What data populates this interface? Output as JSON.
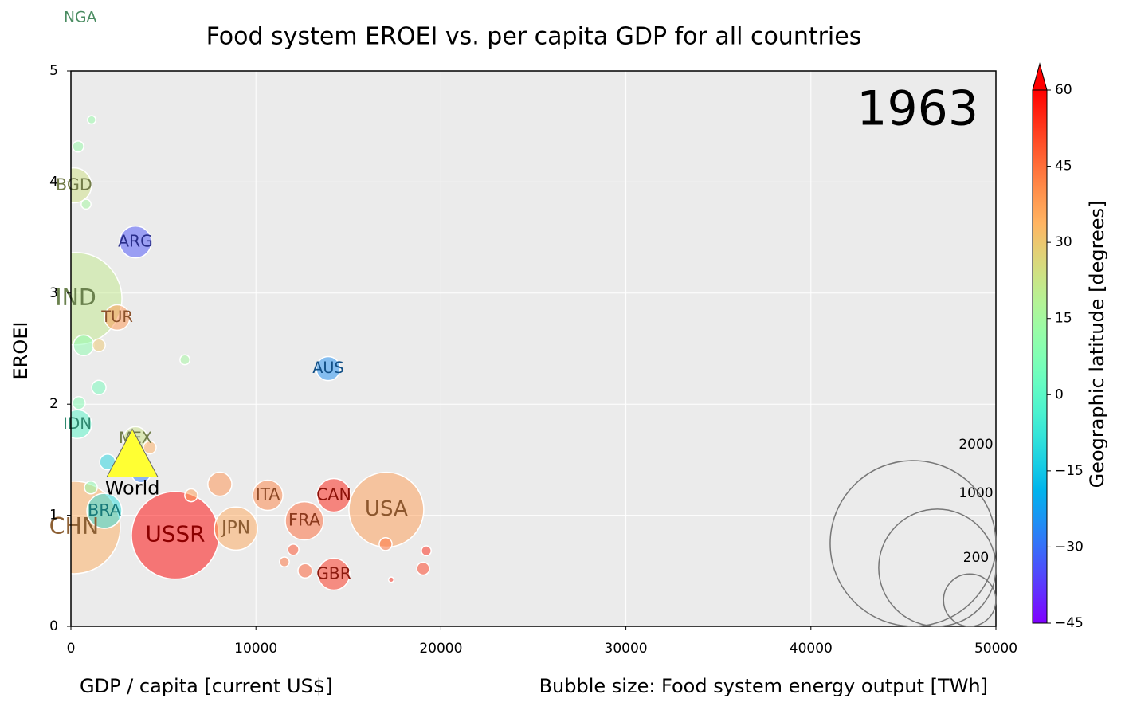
{
  "chart_data": {
    "type": "bubble",
    "title": "Food system EROEI vs. per capita GDP for all countries",
    "xlabel": "GDP / capita [current US$]",
    "ylabel": "EROEI",
    "annotation": "1963",
    "size_label": "Bubble size: Food system energy output [TWh]",
    "colorbar_label": "Geographic latitude [degrees]",
    "xlim": [
      0,
      50000
    ],
    "ylim": [
      0,
      5
    ],
    "xticks": [
      0,
      10000,
      20000,
      30000,
      40000,
      50000
    ],
    "yticks": [
      0,
      1,
      2,
      3,
      4,
      5
    ],
    "clim": [
      -45,
      60
    ],
    "cticks": [
      {
        "value": -45,
        "label": "−45"
      },
      {
        "value": -30,
        "label": "−30"
      },
      {
        "value": -15,
        "label": "−15"
      },
      0,
      15,
      30,
      45,
      60
    ],
    "colormap": "rainbow",
    "grid": true,
    "size_legend": [
      2000,
      1000,
      200
    ],
    "points": {
      "labels": [
        "USA",
        "USSR",
        "CHN",
        "IND",
        "JPN",
        "FRA",
        "ITA",
        "CAN",
        "GBR",
        "ARG",
        "TUR",
        "AUS",
        "BRA",
        "IDN",
        "MEX",
        "BGD",
        "NGA",
        null,
        null,
        null,
        null,
        null,
        null,
        null,
        null,
        null,
        null,
        null,
        null,
        null,
        null,
        null,
        null,
        null,
        null,
        null,
        null,
        null
      ],
      "x": [
        17050,
        5640,
        170,
        260,
        8920,
        12620,
        10640,
        14210,
        14210,
        3490,
        2500,
        13910,
        1810,
        350,
        3490,
        170,
        500,
        17010,
        12020,
        11540,
        12660,
        19210,
        19040,
        17310,
        6500,
        8050,
        6160,
        1510,
        690,
        1510,
        1120,
        390,
        820,
        430,
        1980,
        1080,
        4260,
        3790
      ],
      "y": [
        1.05,
        0.82,
        0.89,
        2.95,
        0.88,
        0.95,
        1.18,
        1.18,
        0.47,
        3.46,
        2.78,
        2.32,
        1.04,
        1.82,
        1.69,
        3.97,
        5.48,
        0.74,
        0.69,
        0.58,
        0.5,
        0.68,
        0.52,
        0.42,
        1.18,
        1.28,
        2.4,
        2.15,
        2.53,
        2.53,
        4.56,
        4.32,
        3.8,
        2.01,
        1.48,
        1.25,
        1.61,
        1.38
      ],
      "size": [
        408,
        559,
        622,
        622,
        135,
        106,
        67,
        82,
        74,
        74,
        47,
        42,
        89,
        60,
        42,
        89,
        30,
        12,
        9,
        7,
        15,
        7,
        12,
        2,
        12,
        42,
        7,
        15,
        31,
        12,
        5,
        9,
        7,
        12,
        18,
        12,
        12,
        27
      ],
      "latitude": [
        38,
        60,
        35,
        21,
        36,
        46,
        42,
        56,
        54,
        -34,
        39,
        -25,
        -10,
        -1,
        23,
        24,
        9,
        45,
        50,
        45,
        48,
        55,
        52,
        55,
        38,
        40,
        15,
        5,
        10,
        30,
        12,
        12,
        15,
        8,
        -12,
        10,
        35,
        -28
      ]
    },
    "world": {
      "label": "World",
      "x": 3320,
      "y": 1.51,
      "color": "#ffff33"
    }
  }
}
